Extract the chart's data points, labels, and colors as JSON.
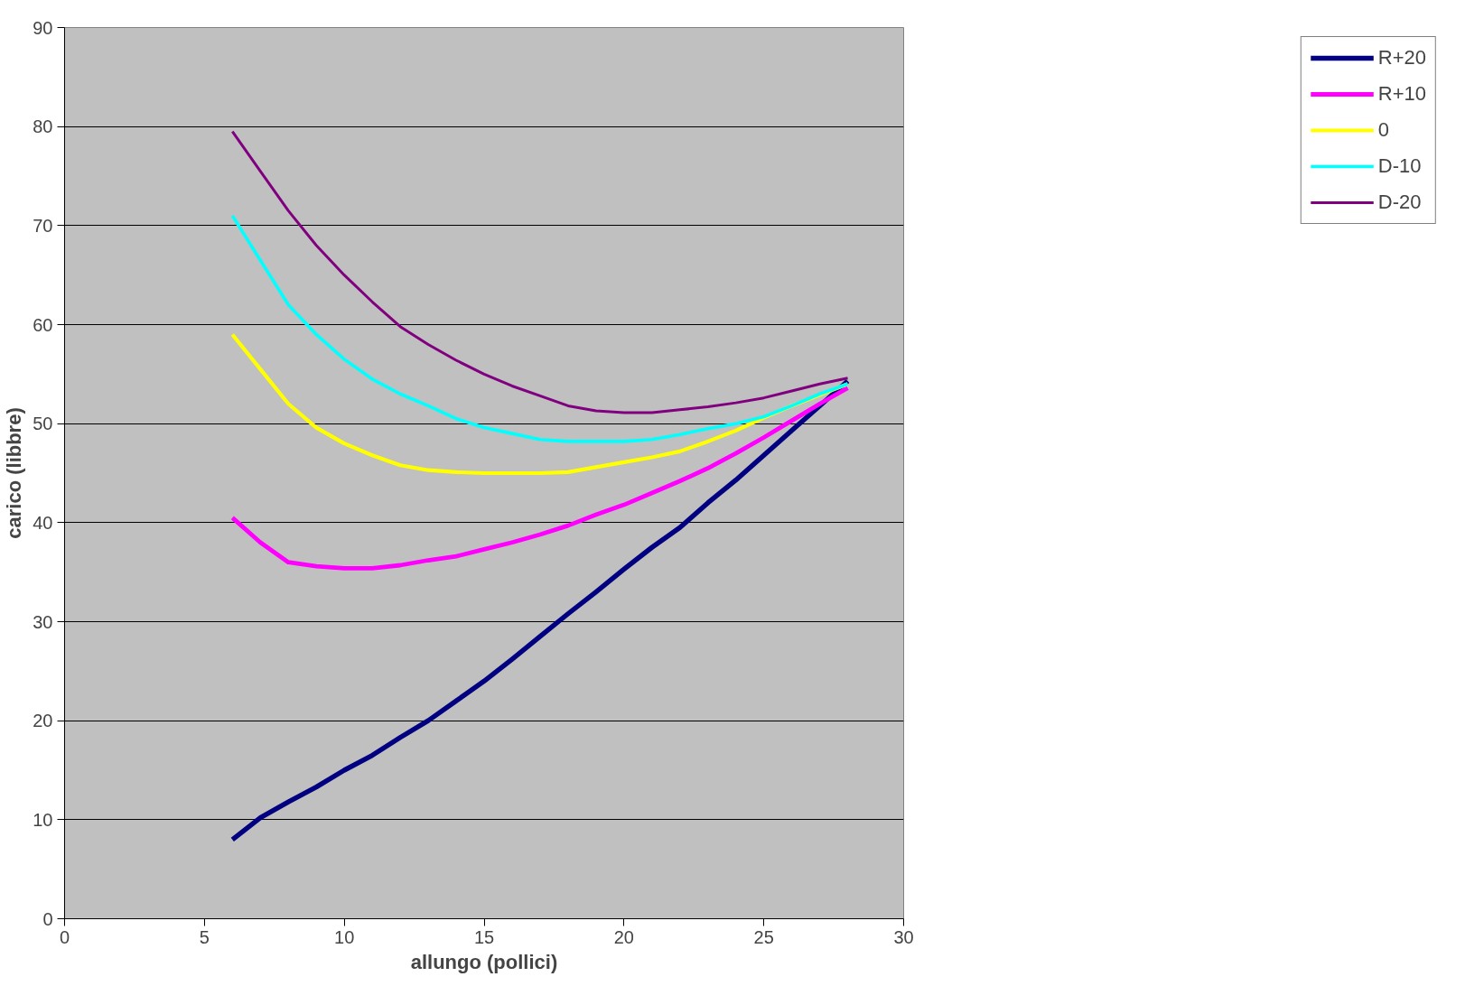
{
  "chart_data": {
    "type": "line",
    "xlabel": "allungo (pollici)",
    "ylabel": "carico (libbre)",
    "x": [
      6,
      7,
      8,
      9,
      10,
      11,
      12,
      13,
      14,
      15,
      16,
      17,
      18,
      19,
      20,
      21,
      22,
      23,
      24,
      25,
      26,
      27,
      28
    ],
    "series": [
      {
        "name": "R+20",
        "color": "#000080",
        "values": [
          8,
          10.2,
          11.8,
          13.3,
          15,
          16.5,
          18.3,
          20,
          22,
          24,
          26.2,
          28.5,
          30.8,
          33,
          35.3,
          37.5,
          39.5,
          42,
          44.3,
          46.8,
          49.3,
          51.8,
          54.3
        ]
      },
      {
        "name": "R+10",
        "color": "#ff00ff",
        "values": [
          40.5,
          38,
          36,
          35.6,
          35.4,
          35.4,
          35.7,
          36.2,
          36.6,
          37.3,
          38,
          38.8,
          39.7,
          40.8,
          41.8,
          43,
          44.2,
          45.5,
          47,
          48.6,
          50.3,
          52,
          53.6
        ]
      },
      {
        "name": "0",
        "color": "#ffff00",
        "values": [
          59,
          55.5,
          52,
          49.6,
          48,
          46.8,
          45.8,
          45.3,
          45.1,
          45,
          45,
          45,
          45.1,
          45.6,
          46.1,
          46.6,
          47.2,
          48.2,
          49.3,
          50.6,
          51.8,
          52.9,
          54
        ]
      },
      {
        "name": "D-10",
        "color": "#00ffff",
        "values": [
          71,
          66.5,
          62,
          59,
          56.5,
          54.5,
          53,
          51.8,
          50.5,
          49.6,
          49,
          48.4,
          48.2,
          48.2,
          48.2,
          48.4,
          48.9,
          49.5,
          50,
          50.7,
          51.8,
          53,
          54
        ]
      },
      {
        "name": "D-20",
        "color": "#800080",
        "values": [
          79.5,
          75.5,
          71.5,
          68,
          65,
          62.3,
          59.8,
          58,
          56.4,
          55,
          53.8,
          52.8,
          51.8,
          51.3,
          51.1,
          51.1,
          51.4,
          51.7,
          52.1,
          52.6,
          53.3,
          54,
          54.6
        ]
      }
    ],
    "xlim": [
      0,
      30
    ],
    "ylim": [
      0,
      90
    ],
    "xticks": [
      0,
      5,
      10,
      15,
      20,
      25,
      30
    ],
    "yticks": [
      0,
      10,
      20,
      30,
      40,
      50,
      60,
      70,
      80,
      90
    ],
    "grid": "y",
    "legend": "right",
    "marker": "none",
    "line_style": "solid"
  }
}
